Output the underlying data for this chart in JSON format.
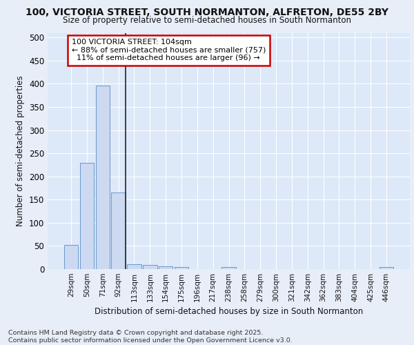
{
  "title1": "100, VICTORIA STREET, SOUTH NORMANTON, ALFRETON, DE55 2BY",
  "title2": "Size of property relative to semi-detached houses in South Normanton",
  "xlabel": "Distribution of semi-detached houses by size in South Normanton",
  "ylabel": "Number of semi-detached properties",
  "categories": [
    "29sqm",
    "50sqm",
    "71sqm",
    "92sqm",
    "113sqm",
    "133sqm",
    "154sqm",
    "175sqm",
    "196sqm",
    "217sqm",
    "238sqm",
    "258sqm",
    "279sqm",
    "300sqm",
    "321sqm",
    "342sqm",
    "362sqm",
    "383sqm",
    "404sqm",
    "425sqm",
    "446sqm"
  ],
  "values": [
    52,
    230,
    396,
    165,
    11,
    9,
    6,
    5,
    0,
    0,
    5,
    0,
    0,
    0,
    0,
    0,
    0,
    0,
    0,
    0,
    5
  ],
  "bar_color": "#ccd9f0",
  "bar_edge_color": "#6699cc",
  "vline_color": "#222222",
  "annotation_text": "100 VICTORIA STREET: 104sqm\n← 88% of semi-detached houses are smaller (757)\n  11% of semi-detached houses are larger (96) →",
  "annotation_box_color": "#ffffff",
  "annotation_box_edge_color": "#cc0000",
  "background_color": "#dde8f8",
  "grid_color": "#ffffff",
  "fig_background": "#e8eef8",
  "footer_text": "Contains HM Land Registry data © Crown copyright and database right 2025.\nContains public sector information licensed under the Open Government Licence v3.0.",
  "ylim": [
    0,
    510
  ],
  "yticks": [
    0,
    50,
    100,
    150,
    200,
    250,
    300,
    350,
    400,
    450,
    500
  ]
}
